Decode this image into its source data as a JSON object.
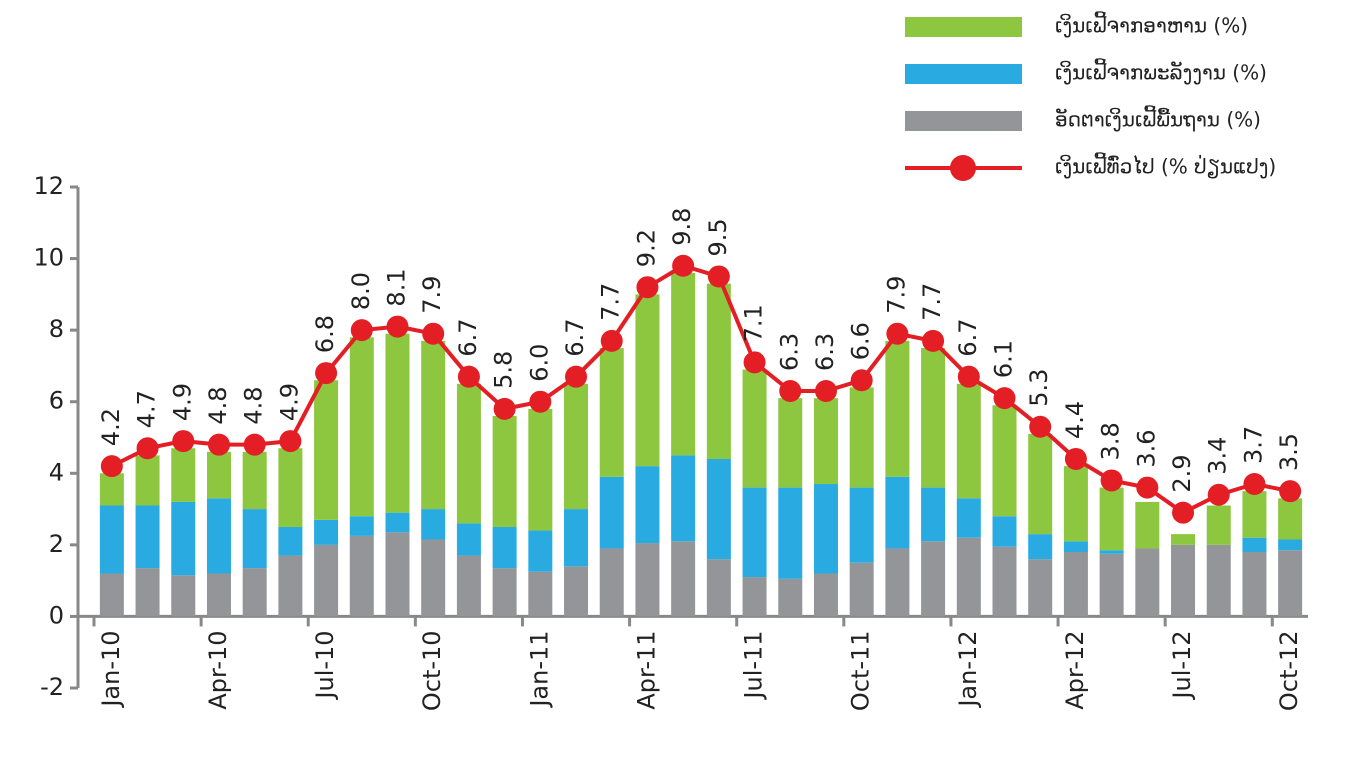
{
  "chart_data": {
    "type": "bar",
    "stacked": true,
    "categories": [
      "Jan-10",
      null,
      null,
      "Apr-10",
      null,
      null,
      "Jul-10",
      null,
      null,
      "Oct-10",
      null,
      null,
      "Jan-11",
      null,
      null,
      "Apr-11",
      null,
      null,
      "Jul-11",
      null,
      null,
      "Oct-11",
      null,
      null,
      "Jan-12",
      null,
      null,
      "Apr-12",
      null,
      null,
      "Jul-12",
      null,
      null,
      "Oct-12"
    ],
    "series": [
      {
        "name": "ອັດຕາເງິນເຟີ້ພື້ນຖານ (%)",
        "color": "#939598",
        "values": [
          1.2,
          1.35,
          1.15,
          1.2,
          1.35,
          1.7,
          2.0,
          2.25,
          2.35,
          2.15,
          1.7,
          1.35,
          1.25,
          1.4,
          1.9,
          2.05,
          2.1,
          1.6,
          1.1,
          1.05,
          1.2,
          1.5,
          1.9,
          2.1,
          2.2,
          1.95,
          1.6,
          1.8,
          1.75,
          1.9,
          2.0,
          2.0,
          1.8,
          1.85
        ]
      },
      {
        "name": "ເງິນເຟີ້ຈາກພະລັງງານ (%)",
        "color": "#29abe2",
        "values": [
          1.9,
          1.75,
          2.05,
          2.1,
          1.65,
          0.8,
          0.7,
          0.55,
          0.55,
          0.85,
          0.9,
          1.15,
          1.15,
          1.6,
          2.0,
          2.15,
          2.4,
          2.8,
          2.5,
          2.55,
          2.5,
          2.1,
          2.0,
          1.5,
          1.1,
          0.85,
          0.7,
          0.3,
          0.1,
          0,
          0,
          0,
          0.4,
          0.3
        ]
      },
      {
        "name": "ເງິນເຟີ້ຈາກອາຫານ (%)",
        "color": "#8dc63f",
        "values": [
          0.9,
          1.4,
          1.5,
          1.3,
          1.6,
          2.2,
          3.9,
          5.0,
          5.0,
          4.7,
          3.9,
          3.1,
          3.4,
          3.5,
          3.6,
          4.8,
          5.1,
          4.9,
          3.3,
          2.5,
          2.4,
          2.8,
          3.8,
          3.9,
          3.2,
          3.1,
          2.8,
          2.1,
          1.75,
          1.3,
          0.3,
          1.1,
          1.3,
          1.15
        ]
      },
      {
        "name": "ເງິນເຟີ້ທົ່ວໄປ (% ປ່ຽນແປງ)",
        "color": "#e31e24",
        "type": "line",
        "values": [
          4.2,
          4.7,
          4.9,
          4.8,
          4.8,
          4.9,
          6.8,
          8.0,
          8.1,
          7.9,
          6.7,
          5.8,
          6.0,
          6.7,
          7.7,
          9.2,
          9.8,
          9.5,
          7.1,
          6.3,
          6.3,
          6.6,
          7.9,
          7.7,
          6.7,
          6.1,
          5.3,
          4.4,
          3.8,
          3.6,
          2.9,
          3.4,
          3.7,
          3.5
        ],
        "value_labels": [
          "4.2",
          "4.7",
          "4.9",
          "4.8",
          "4.8",
          "4.9",
          "6.8",
          "8.0",
          "8.1",
          "7.9",
          "6.7",
          "5.8",
          "6.0",
          "6.7",
          "7.7",
          "9.2",
          "9.8",
          "9.5",
          "7.1",
          "6.3",
          "6.3",
          "6.6",
          "7.9",
          "7.7",
          "6.7",
          "6.1",
          "5.3",
          "4.4",
          "3.8",
          "3.6",
          "2.9",
          "3.4",
          "3.7",
          "3.5"
        ]
      }
    ],
    "ylim": [
      -2,
      12
    ],
    "yticks": [
      -2,
      0,
      2,
      4,
      6,
      8,
      10,
      12
    ],
    "grid": false,
    "legend": "top-right"
  }
}
